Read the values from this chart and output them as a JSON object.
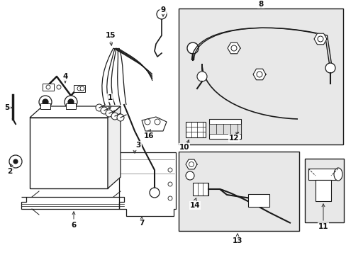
{
  "bg_color": "#ffffff",
  "fg_color": "#1a1a1a",
  "box_fill": "#e8e8e8",
  "fig_width": 4.89,
  "fig_height": 3.6,
  "dpi": 100
}
